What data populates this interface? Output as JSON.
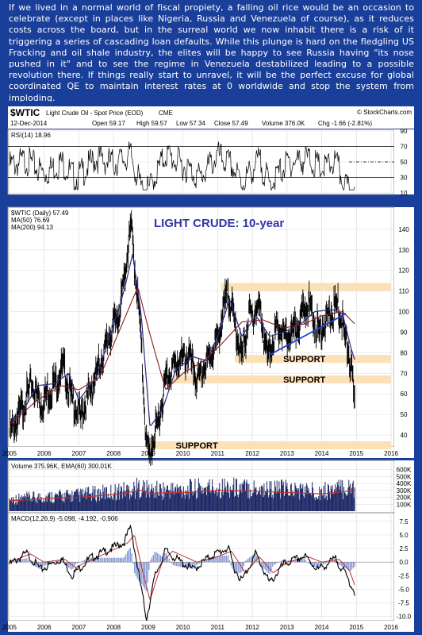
{
  "intro_text": "If we lived in a normal world of fiscal propiety, a falling oil rice would be an occasion to celebrate (except in places like Nigeria, Russia and Venezuela of course), as it reduces costs across the board, but in the surreal world we now inhabit there is a risk of it triggering a series of cascading loan defaults. While this plunge is hard on the fledgling US Fracking and oil shale industry, the elites will be happy to see Russia having \"its nose pushed in it\" and to see the regime in Venezuela destabilized leading to a possible revolution there. If things really start to unravel, it will be the perfect excuse for global coordinated QE to maintain interest rates at 0 worldwide and stop the system from imploding.",
  "header": {
    "symbol": "$WTIC",
    "name": "Light Crude Oil - Spot Price (EOD)",
    "exchange": "CME",
    "credit": "© StockCharts.com",
    "date": "12-Dec-2014",
    "open": "Open 59.17",
    "high": "High 59.57",
    "low": "Low 57.34",
    "close": "Close 57.49",
    "volume": "Volume 376.0K",
    "change": "Chg -1.66 (-2.81%)"
  },
  "colors": {
    "background_frame": "#1a3f9a",
    "price_bars": "#000000",
    "ma50": "#2a2a8a",
    "ma200": "#8b1a1a",
    "support_band": "#fbe0b8",
    "trendline": "#2244cc",
    "volume_bars": "#1f2a66",
    "volume_ema": "#c03030",
    "macd_line": "#000000",
    "macd_signal": "#c03030",
    "macd_hist": "#7a8fd0",
    "title_text": "#3333aa"
  },
  "chart_data": {
    "type": "line",
    "title": "LIGHT CRUDE: 10-year",
    "x_ticks": [
      "2005",
      "2006",
      "2007",
      "2008",
      "2009",
      "2010",
      "2011",
      "2012",
      "2013",
      "2014",
      "2015",
      "2016"
    ],
    "rsi": {
      "label": "RSI(14) 18.96",
      "ylim": [
        10,
        90
      ],
      "y_ticks": [
        10,
        30,
        50,
        70,
        90
      ],
      "levels": [
        30,
        70
      ],
      "points": [
        [
          2005.0,
          55
        ],
        [
          2005.5,
          62
        ],
        [
          2006.0,
          45
        ],
        [
          2006.5,
          60
        ],
        [
          2006.9,
          38
        ],
        [
          2007.5,
          65
        ],
        [
          2008.0,
          58
        ],
        [
          2008.5,
          68
        ],
        [
          2008.8,
          25
        ],
        [
          2009.0,
          22
        ],
        [
          2009.5,
          70
        ],
        [
          2010.0,
          55
        ],
        [
          2010.5,
          40
        ],
        [
          2011.0,
          68
        ],
        [
          2011.4,
          55
        ],
        [
          2011.7,
          32
        ],
        [
          2012.2,
          62
        ],
        [
          2012.5,
          30
        ],
        [
          2013.0,
          58
        ],
        [
          2013.6,
          64
        ],
        [
          2014.0,
          50
        ],
        [
          2014.4,
          60
        ],
        [
          2014.7,
          25
        ],
        [
          2014.95,
          19
        ]
      ]
    },
    "price": {
      "legend": [
        "$WTIC (Daily) 57.49",
        "MA(50) 76.69",
        "MA(200) 94.13"
      ],
      "ylim": [
        35,
        150
      ],
      "y_ticks": [
        40,
        50,
        60,
        70,
        80,
        90,
        100,
        110,
        120,
        130,
        140
      ],
      "series": [
        {
          "name": "$WTIC (Daily) 57.49",
          "points": [
            [
              2005.0,
              44
            ],
            [
              2005.3,
              53
            ],
            [
              2005.65,
              68
            ],
            [
              2005.9,
              58
            ],
            [
              2006.3,
              68
            ],
            [
              2006.55,
              76
            ],
            [
              2006.8,
              60
            ],
            [
              2007.05,
              52
            ],
            [
              2007.5,
              72
            ],
            [
              2007.9,
              92
            ],
            [
              2008.2,
              105
            ],
            [
              2008.5,
              145
            ],
            [
              2008.75,
              100
            ],
            [
              2008.95,
              38
            ],
            [
              2009.05,
              34
            ],
            [
              2009.3,
              50
            ],
            [
              2009.5,
              70
            ],
            [
              2009.8,
              78
            ],
            [
              2010.2,
              82
            ],
            [
              2010.4,
              68
            ],
            [
              2010.8,
              82
            ],
            [
              2011.0,
              90
            ],
            [
              2011.3,
              113
            ],
            [
              2011.5,
              97
            ],
            [
              2011.7,
              80
            ],
            [
              2011.9,
              100
            ],
            [
              2012.2,
              106
            ],
            [
              2012.45,
              80
            ],
            [
              2012.7,
              95
            ],
            [
              2013.0,
              90
            ],
            [
              2013.3,
              95
            ],
            [
              2013.6,
              108
            ],
            [
              2013.9,
              93
            ],
            [
              2014.2,
              100
            ],
            [
              2014.45,
              106
            ],
            [
              2014.6,
              98
            ],
            [
              2014.85,
              75
            ],
            [
              2014.95,
              57.5
            ]
          ]
        },
        {
          "name": "MA(50) 76.69",
          "points": [
            [
              2005.0,
              46
            ],
            [
              2005.4,
              52
            ],
            [
              2005.8,
              64
            ],
            [
              2006.3,
              65
            ],
            [
              2006.7,
              70
            ],
            [
              2007.0,
              57
            ],
            [
              2007.5,
              68
            ],
            [
              2007.9,
              88
            ],
            [
              2008.3,
              110
            ],
            [
              2008.55,
              128
            ],
            [
              2008.8,
              98
            ],
            [
              2009.05,
              44
            ],
            [
              2009.4,
              52
            ],
            [
              2009.8,
              72
            ],
            [
              2010.3,
              78
            ],
            [
              2010.7,
              76
            ],
            [
              2011.0,
              88
            ],
            [
              2011.35,
              106
            ],
            [
              2011.7,
              88
            ],
            [
              2012.1,
              98
            ],
            [
              2012.5,
              88
            ],
            [
              2012.9,
              90
            ],
            [
              2013.4,
              94
            ],
            [
              2013.8,
              100
            ],
            [
              2014.3,
              101
            ],
            [
              2014.6,
              99
            ],
            [
              2014.85,
              82
            ],
            [
              2014.95,
              76.7
            ]
          ]
        },
        {
          "name": "MA(200) 94.13",
          "points": [
            [
              2005.0,
              45
            ],
            [
              2005.8,
              57
            ],
            [
              2006.5,
              64
            ],
            [
              2007.0,
              62
            ],
            [
              2007.6,
              68
            ],
            [
              2008.2,
              92
            ],
            [
              2008.7,
              112
            ],
            [
              2009.0,
              92
            ],
            [
              2009.5,
              62
            ],
            [
              2010.0,
              70
            ],
            [
              2010.6,
              76
            ],
            [
              2011.1,
              84
            ],
            [
              2011.7,
              95
            ],
            [
              2012.3,
              96
            ],
            [
              2012.9,
              92
            ],
            [
              2013.5,
              94
            ],
            [
              2014.0,
              98
            ],
            [
              2014.6,
              100
            ],
            [
              2014.95,
              94.1
            ]
          ]
        }
      ],
      "supports": [
        {
          "value": 112,
          "label": ""
        },
        {
          "value": 77,
          "label": "SUPPORT"
        },
        {
          "value": 67,
          "label": "SUPPORT"
        },
        {
          "value": 35,
          "label": "SUPPORT"
        }
      ],
      "trendline": [
        [
          2012.5,
          79
        ],
        [
          2014.7,
          99
        ]
      ]
    },
    "volume": {
      "label": "Volume 375.96K, EMA(60) 300.01K",
      "ylim": [
        0,
        700000
      ],
      "y_ticks": [
        "100K",
        "200K",
        "300K",
        "400K",
        "500K",
        "600K"
      ],
      "y_tick_values": [
        100000,
        200000,
        300000,
        400000,
        500000,
        600000
      ],
      "ema_points": [
        [
          2005.0,
          150000
        ],
        [
          2006.0,
          180000
        ],
        [
          2007.0,
          200000
        ],
        [
          2008.0,
          240000
        ],
        [
          2008.8,
          300000
        ],
        [
          2009.0,
          260000
        ],
        [
          2010.0,
          270000
        ],
        [
          2011.0,
          300000
        ],
        [
          2012.0,
          290000
        ],
        [
          2013.0,
          270000
        ],
        [
          2014.0,
          250000
        ],
        [
          2014.95,
          300000
        ]
      ]
    },
    "macd": {
      "label": "MACD(12,26,9) -5.098, -4.192, -0.906",
      "ylim": [
        -10.5,
        8.5
      ],
      "y_ticks": [
        "-10.0",
        "-7.5",
        "-5.0",
        "-2.5",
        "0.0",
        "2.5",
        "5.0",
        "7.5"
      ],
      "y_tick_values": [
        -10,
        -7.5,
        -5,
        -2.5,
        0,
        2.5,
        5,
        7.5
      ],
      "macd_points": [
        [
          2005.0,
          0
        ],
        [
          2005.5,
          2
        ],
        [
          2005.9,
          -1
        ],
        [
          2006.5,
          1
        ],
        [
          2006.8,
          -2
        ],
        [
          2007.3,
          1
        ],
        [
          2007.8,
          2.5
        ],
        [
          2008.3,
          4
        ],
        [
          2008.5,
          7
        ],
        [
          2008.7,
          -1
        ],
        [
          2008.95,
          -10
        ],
        [
          2009.2,
          -2
        ],
        [
          2009.5,
          2.5
        ],
        [
          2009.8,
          1
        ],
        [
          2010.3,
          -1
        ],
        [
          2010.8,
          1.5
        ],
        [
          2011.3,
          3
        ],
        [
          2011.5,
          -1
        ],
        [
          2011.7,
          -3
        ],
        [
          2012.1,
          2
        ],
        [
          2012.5,
          -3.5
        ],
        [
          2012.9,
          0
        ],
        [
          2013.5,
          1.5
        ],
        [
          2013.9,
          -1
        ],
        [
          2014.4,
          1
        ],
        [
          2014.7,
          -2
        ],
        [
          2014.95,
          -5.1
        ]
      ],
      "signal_points": [
        [
          2005.0,
          0
        ],
        [
          2005.6,
          1.5
        ],
        [
          2006.0,
          0
        ],
        [
          2006.6,
          0.5
        ],
        [
          2006.9,
          -1
        ],
        [
          2007.4,
          0.5
        ],
        [
          2007.9,
          2
        ],
        [
          2008.4,
          3.5
        ],
        [
          2008.6,
          5
        ],
        [
          2008.85,
          -2
        ],
        [
          2009.05,
          -7
        ],
        [
          2009.4,
          0
        ],
        [
          2009.7,
          2
        ],
        [
          2010.4,
          0
        ],
        [
          2011.0,
          1
        ],
        [
          2011.4,
          2
        ],
        [
          2011.8,
          -2
        ],
        [
          2012.2,
          1
        ],
        [
          2012.6,
          -2
        ],
        [
          2013.0,
          0
        ],
        [
          2013.6,
          1
        ],
        [
          2014.0,
          0
        ],
        [
          2014.5,
          0.5
        ],
        [
          2014.8,
          -1.5
        ],
        [
          2014.95,
          -4.2
        ]
      ]
    }
  }
}
